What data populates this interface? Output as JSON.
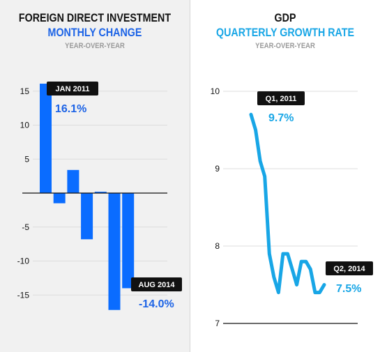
{
  "left": {
    "title": "FOREIGN DIRECT INVESTMENT",
    "subtitle": "MONTHLY CHANGE",
    "note": "YEAR-OVER-YEAR"
  },
  "right": {
    "title": "GDP",
    "subtitle": "QUARTERLY GROWTH RATE",
    "note": "YEAR-OVER-YEAR"
  },
  "colors": {
    "fdi_bars": "#0a6cff",
    "fdi_value_text": "#1c63e6",
    "gdp_line": "#18a6e6",
    "callout_background": "#111111",
    "left_background": "#f1f1f1"
  },
  "chart_data": [
    {
      "type": "bar",
      "title": "FOREIGN DIRECT INVESTMENT",
      "subtitle": "MONTHLY CHANGE",
      "note": "YEAR-OVER-YEAR",
      "values": [
        16.1,
        -1.5,
        3.4,
        -6.8,
        0.2,
        -17.2,
        -14.0
      ],
      "ylim": [
        -17,
        17
      ],
      "yticks": [
        15,
        10,
        5,
        -5,
        -10,
        -15
      ],
      "grid": true,
      "annotations": [
        {
          "label": "JAN 2011",
          "value": "16.1%",
          "bar_index": 0
        },
        {
          "label": "AUG 2014",
          "value": "-14.0%",
          "bar_index": 6
        }
      ]
    },
    {
      "type": "line",
      "title": "GDP",
      "subtitle": "QUARTERLY GROWTH RATE",
      "note": "YEAR-OVER-YEAR",
      "values": [
        9.7,
        9.5,
        9.1,
        8.9,
        7.9,
        7.6,
        7.4,
        7.9,
        7.9,
        7.7,
        7.5,
        7.8,
        7.8,
        7.7,
        7.4,
        7.4,
        7.5
      ],
      "ylim": [
        7,
        10.2
      ],
      "yticks": [
        10,
        9,
        8,
        7
      ],
      "grid": true,
      "annotations": [
        {
          "label": "Q1, 2011",
          "value": "9.7%",
          "point_index": 0
        },
        {
          "label": "Q2, 2014",
          "value": "7.5%",
          "point_index": 16
        }
      ]
    }
  ]
}
